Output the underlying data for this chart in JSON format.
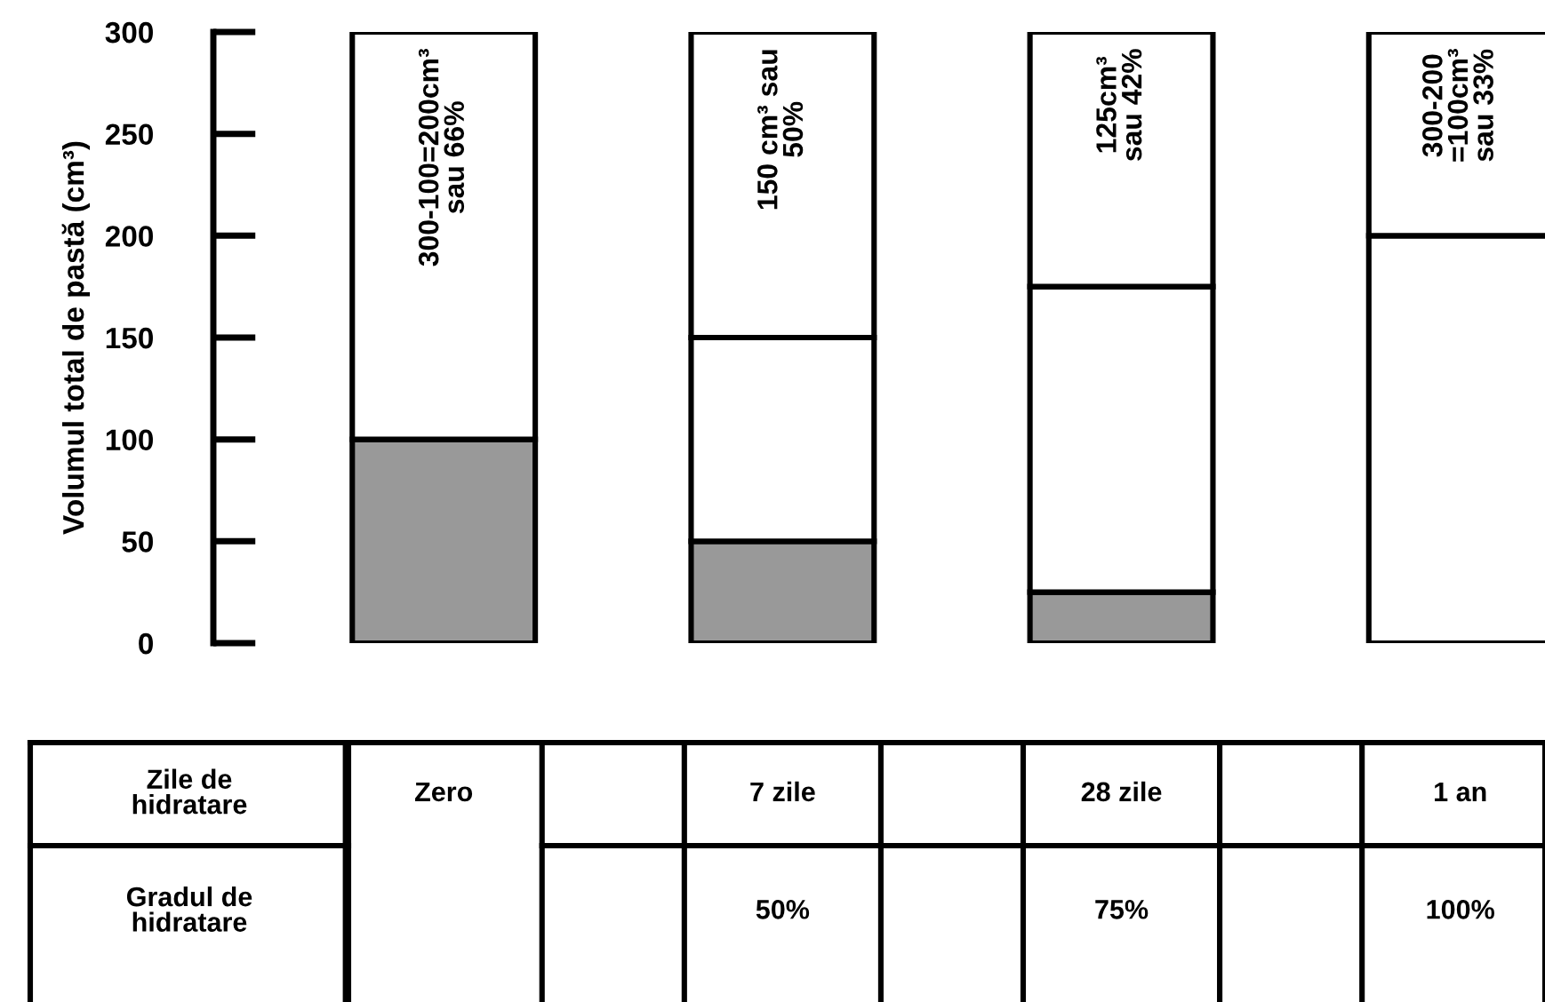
{
  "chart_data": {
    "type": "bar",
    "stacked": true,
    "ylabel": "Volumul total de pastă (cm³)",
    "categories": [
      "Zero",
      "7 zile",
      "28 zile",
      "1 an"
    ],
    "series": [
      {
        "color": "#999999",
        "values": [
          100,
          50,
          25,
          0
        ]
      },
      {
        "color": "#ffffff",
        "values": [
          0,
          100,
          150,
          200
        ]
      },
      {
        "color": "#ffffff",
        "values": [
          200,
          150,
          125,
          100
        ],
        "value_labels": [
          "300-100=200cm³\nsau 66%",
          "150 cm³ sau\n50%",
          "125cm³\nsau 42%",
          "300-200\n=100cm³\nsau 33%"
        ]
      }
    ],
    "ylim": [
      0,
      300
    ],
    "yticks": [
      0,
      50,
      100,
      150,
      200,
      250,
      300
    ],
    "grid": false,
    "legend": false,
    "annotations": [
      "Zile de\nhidratare",
      "Gradul de\nhidratare",
      "50%",
      "75%",
      "100%"
    ]
  }
}
